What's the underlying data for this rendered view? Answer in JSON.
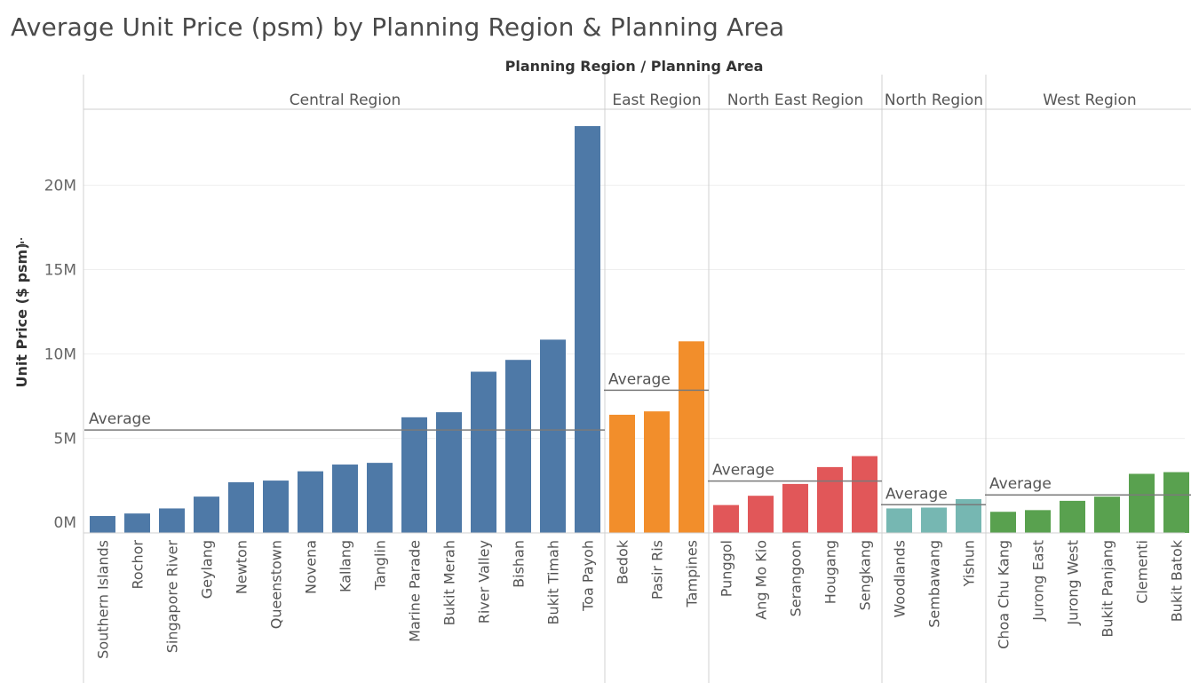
{
  "chart_data": {
    "type": "bar",
    "title": "Average Unit Price (psm) by Planning Region & Planning Area",
    "column_header": "Planning Region  /  Planning Area",
    "ylabel": "Unit Price ($ psm)",
    "ylabel_sort_icon": "sort-descending-icon",
    "ylim": [
      -600000,
      24500000
    ],
    "yticks": [
      0,
      5000000,
      10000000,
      15000000,
      20000000
    ],
    "ytick_labels": [
      "0M",
      "5M",
      "10M",
      "15M",
      "20M"
    ],
    "grid": true,
    "reference_line_label": "Average",
    "regions": [
      {
        "name": "Central Region",
        "color": "#4e79a7",
        "average": 5500000,
        "categories": [
          "Southern Islands",
          "Rochor",
          "Singapore River",
          "Geylang",
          "Newton",
          "Queenstown",
          "Novena",
          "Kallang",
          "Tanglin",
          "Marine Parade",
          "Bukit Merah",
          "River Valley",
          "Bishan",
          "Bukit Timah",
          "Toa Payoh"
        ],
        "values": [
          400000,
          550000,
          850000,
          1550000,
          2400000,
          2500000,
          3050000,
          3450000,
          3550000,
          6250000,
          6550000,
          8950000,
          9650000,
          10850000,
          23500000
        ]
      },
      {
        "name": "East Region",
        "color": "#f28e2b",
        "average": 7850000,
        "categories": [
          "Bedok",
          "Pasir Ris",
          "Tampines"
        ],
        "values": [
          6400000,
          6600000,
          10750000
        ]
      },
      {
        "name": "North East Region",
        "color": "#e15759",
        "average": 2470000,
        "categories": [
          "Punggol",
          "Ang Mo Kio",
          "Serangoon",
          "Hougang",
          "Sengkang"
        ],
        "values": [
          1050000,
          1600000,
          2300000,
          3300000,
          3950000
        ]
      },
      {
        "name": "North Region",
        "color": "#76b7b2",
        "average": 1070000,
        "categories": [
          "Woodlands",
          "Sembawang",
          "Yishun"
        ],
        "values": [
          850000,
          900000,
          1400000
        ]
      },
      {
        "name": "West Region",
        "color": "#59a14f",
        "average": 1650000,
        "categories": [
          "Choa Chu Kang",
          "Jurong East",
          "Jurong West",
          "Bukit Panjang",
          "Clementi",
          "Bukit Batok"
        ],
        "values": [
          650000,
          750000,
          1300000,
          1550000,
          2900000,
          3000000
        ]
      }
    ]
  }
}
